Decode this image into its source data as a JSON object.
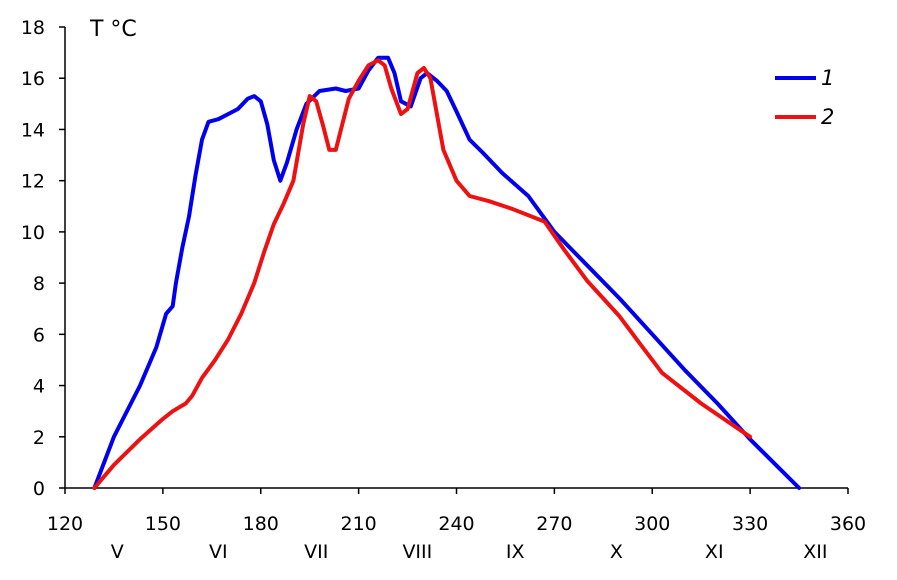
{
  "chart_data": {
    "type": "line",
    "title": "",
    "xlabel": "",
    "ylabel": "T °C",
    "xlim": [
      120,
      360
    ],
    "ylim": [
      0,
      18
    ],
    "x_ticks": [
      "120",
      "150",
      "180",
      "210",
      "240",
      "270",
      "300",
      "330",
      "360"
    ],
    "y_ticks": [
      "0",
      "2",
      "4",
      "6",
      "8",
      "10",
      "12",
      "14",
      "16",
      "18"
    ],
    "month_labels": [
      {
        "text": "V",
        "x": 136
      },
      {
        "text": "VI",
        "x": 167
      },
      {
        "text": "VII",
        "x": 197
      },
      {
        "text": "VIII",
        "x": 228
      },
      {
        "text": "IX",
        "x": 258
      },
      {
        "text": "X",
        "x": 289
      },
      {
        "text": "XI",
        "x": 319
      },
      {
        "text": "XII",
        "x": 350
      }
    ],
    "grid": false,
    "legend_position": "top-right",
    "series": [
      {
        "name": "1",
        "color": "#0000ee",
        "points": [
          [
            129,
            0
          ],
          [
            135,
            2
          ],
          [
            143,
            4
          ],
          [
            148,
            5.5
          ],
          [
            151,
            6.8
          ],
          [
            153,
            7.1
          ],
          [
            154,
            8
          ],
          [
            156,
            9.4
          ],
          [
            158,
            10.6
          ],
          [
            160,
            12.2
          ],
          [
            162,
            13.6
          ],
          [
            164,
            14.3
          ],
          [
            167,
            14.4
          ],
          [
            170,
            14.6
          ],
          [
            173,
            14.8
          ],
          [
            176,
            15.2
          ],
          [
            178,
            15.3
          ],
          [
            180,
            15.1
          ],
          [
            182,
            14.2
          ],
          [
            184,
            12.8
          ],
          [
            186,
            12.0
          ],
          [
            188,
            12.7
          ],
          [
            191,
            14.0
          ],
          [
            194,
            15.0
          ],
          [
            198,
            15.5
          ],
          [
            203,
            15.6
          ],
          [
            206,
            15.5
          ],
          [
            210,
            15.6
          ],
          [
            213,
            16.3
          ],
          [
            216,
            16.8
          ],
          [
            219,
            16.8
          ],
          [
            221,
            16.2
          ],
          [
            223,
            15.1
          ],
          [
            226,
            14.9
          ],
          [
            229,
            16.0
          ],
          [
            231,
            16.2
          ],
          [
            234,
            15.9
          ],
          [
            237,
            15.5
          ],
          [
            240,
            14.7
          ],
          [
            244,
            13.6
          ],
          [
            248,
            13.1
          ],
          [
            254,
            12.3
          ],
          [
            262,
            11.4
          ],
          [
            270,
            10.0
          ],
          [
            280,
            8.7
          ],
          [
            290,
            7.4
          ],
          [
            300,
            6.0
          ],
          [
            310,
            4.6
          ],
          [
            320,
            3.3
          ],
          [
            330,
            1.9
          ],
          [
            345,
            0
          ]
        ]
      },
      {
        "name": "2",
        "color": "#ee1111",
        "points": [
          [
            129,
            0
          ],
          [
            135,
            0.9
          ],
          [
            143,
            1.9
          ],
          [
            150,
            2.7
          ],
          [
            153,
            3.0
          ],
          [
            157,
            3.3
          ],
          [
            159,
            3.6
          ],
          [
            162,
            4.3
          ],
          [
            166,
            5.0
          ],
          [
            170,
            5.8
          ],
          [
            174,
            6.8
          ],
          [
            178,
            8.0
          ],
          [
            181,
            9.2
          ],
          [
            184,
            10.3
          ],
          [
            187,
            11.1
          ],
          [
            190,
            12.0
          ],
          [
            193,
            14.2
          ],
          [
            195,
            15.3
          ],
          [
            197,
            15.1
          ],
          [
            199,
            14.2
          ],
          [
            201,
            13.2
          ],
          [
            203,
            13.2
          ],
          [
            205,
            14.2
          ],
          [
            207,
            15.2
          ],
          [
            210,
            15.9
          ],
          [
            213,
            16.5
          ],
          [
            216,
            16.7
          ],
          [
            218,
            16.5
          ],
          [
            220,
            15.6
          ],
          [
            223,
            14.6
          ],
          [
            225,
            14.8
          ],
          [
            228,
            16.2
          ],
          [
            230,
            16.4
          ],
          [
            232,
            16.0
          ],
          [
            234,
            14.6
          ],
          [
            236,
            13.2
          ],
          [
            240,
            12.0
          ],
          [
            244,
            11.4
          ],
          [
            250,
            11.2
          ],
          [
            257,
            10.9
          ],
          [
            267,
            10.4
          ],
          [
            273,
            9.3
          ],
          [
            280,
            8.1
          ],
          [
            290,
            6.7
          ],
          [
            297,
            5.5
          ],
          [
            303,
            4.5
          ],
          [
            315,
            3.3
          ],
          [
            330,
            2.0
          ]
        ]
      }
    ]
  }
}
